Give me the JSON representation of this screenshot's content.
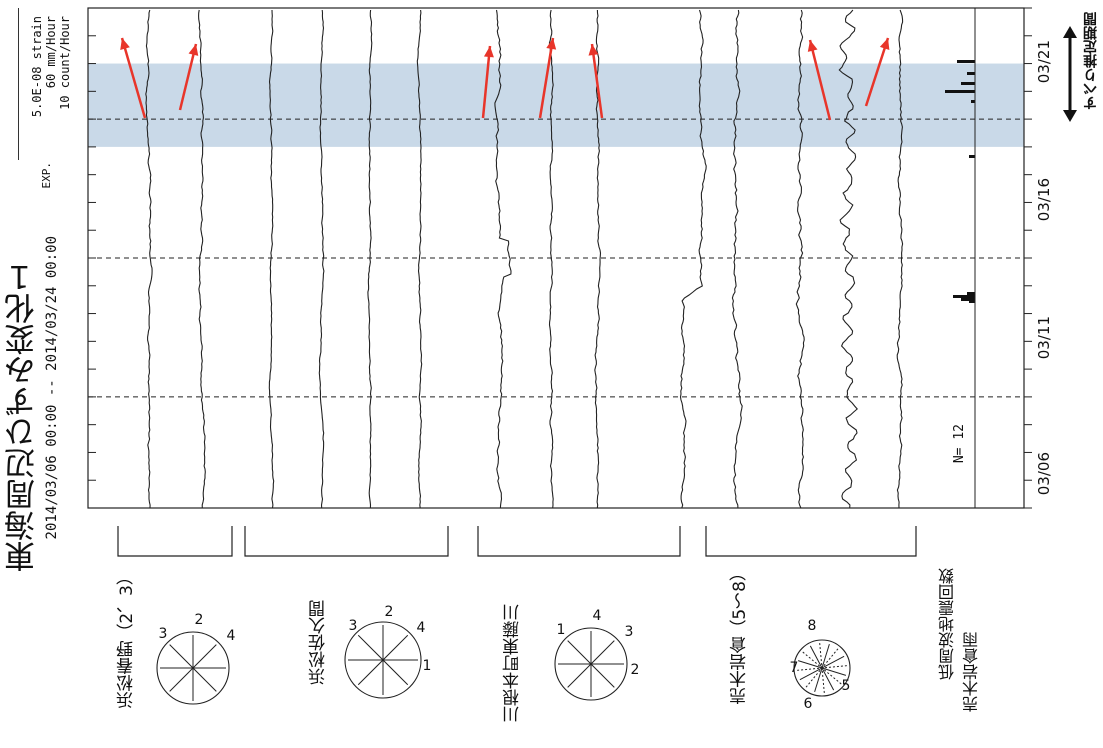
{
  "title": "東海周辺ひずみ変化１",
  "period": "2014/03/06 00:00 -- 2014/03/24 00:00",
  "scale": {
    "label": "EXP.",
    "lines": [
      "5.0E-08 strain",
      "60 mm/Hour",
      "10 count/Hour"
    ]
  },
  "slip_period_label": "すべり推定期間",
  "eq_count_label": "N= 12",
  "chart_data": {
    "type": "line",
    "x_axis": "time",
    "x_range": [
      "03/06",
      "03/24"
    ],
    "x_ticks": [
      "03/06",
      "03/11",
      "03/16",
      "03/21"
    ],
    "dashed_date_lines": [
      "03/10",
      "03/15",
      "03/20"
    ],
    "shaded_period": [
      "03/19",
      "03/22"
    ],
    "groups": [
      {
        "label": "浜松春野（2、3）",
        "traces": 2,
        "rose_numbers": [
          "3",
          "2",
          "4"
        ]
      },
      {
        "label": "浜松佐久間",
        "traces": 4,
        "rose_numbers": [
          "3",
          "2",
          "4",
          "1"
        ]
      },
      {
        "label": "川根本町東藤川",
        "traces": 3,
        "rose_numbers": [
          "1",
          "4",
          "3",
          "2"
        ]
      },
      {
        "label": "売木岩倉（5〜8）",
        "traces": 4,
        "rose_numbers": [
          "7",
          "8",
          "6",
          "5"
        ]
      }
    ],
    "extra_series": [
      "低周波地震回数",
      "売木岩倉雨"
    ],
    "colors": {
      "shade": "#c9d9e8",
      "arrow": "#e8352a",
      "trace": "#222222"
    }
  }
}
